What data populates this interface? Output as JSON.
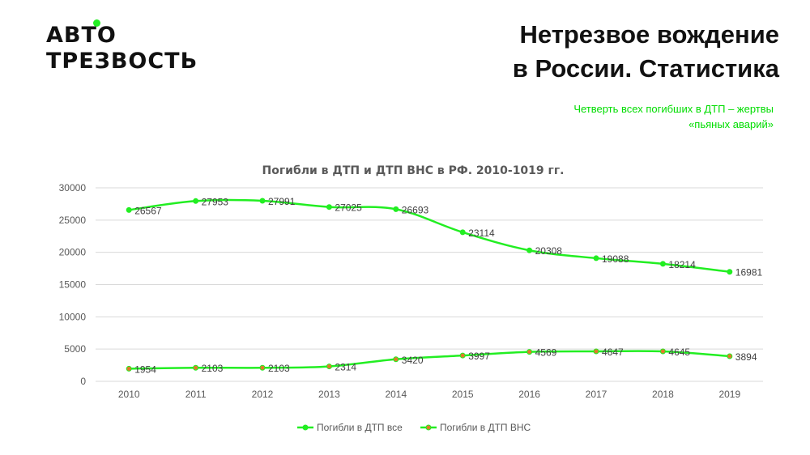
{
  "header": {
    "logo_line1": "АВТО",
    "logo_line2": "ТРЕЗВОСТЬ",
    "title_line1": "Нетрезвое вождение",
    "title_line2": "в России. Статистика",
    "subtitle_line1": "Четверть всех погибших в ДТП – жертвы",
    "subtitle_line2": "«пьяных аварий»"
  },
  "colors": {
    "accent": "#22ee22",
    "subtitle": "#00dd00",
    "dot_all": "#22ee22",
    "dot_vns": "#e07a2a",
    "grid": "#d9d9d9",
    "axis_text": "#595959"
  },
  "chart_data": {
    "type": "line",
    "title": "Погибли в ДТП и ДТП ВНС в РФ. 2010-1019 гг.",
    "categories": [
      "2010",
      "2011",
      "2012",
      "2013",
      "2014",
      "2015",
      "2016",
      "2017",
      "2018",
      "2019"
    ],
    "ylim": [
      0,
      30000
    ],
    "yticks": [
      "0",
      "5000",
      "10000",
      "15000",
      "20000",
      "25000",
      "30000"
    ],
    "grid": true,
    "legend": "bottom",
    "series": [
      {
        "name": "Погибли в ДТП все",
        "values": [
          26567,
          27953,
          27991,
          27025,
          26693,
          23114,
          20308,
          19088,
          18214,
          16981
        ]
      },
      {
        "name": "Погибли в ДТП ВНС",
        "values": [
          1954,
          2103,
          2103,
          2314,
          3420,
          3997,
          4569,
          4647,
          4645,
          3894
        ]
      }
    ]
  }
}
